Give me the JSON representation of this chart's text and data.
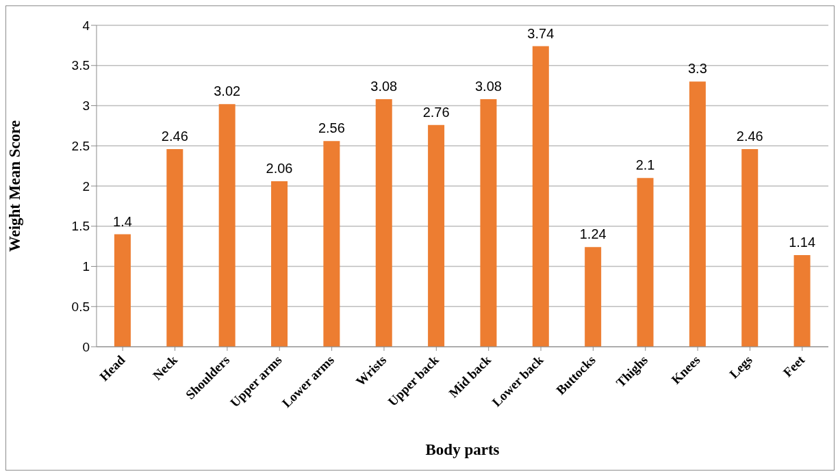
{
  "chart_data": {
    "type": "bar",
    "xlabel": "Body parts",
    "ylabel": "Weight Mean Score",
    "categories": [
      "Head",
      "Neck",
      "Shoulders",
      "Upper arms",
      "Lower arms",
      "Wrists",
      "Upper back",
      "Mid back",
      "Lower back",
      "Buttocks",
      "Thighs",
      "Knees",
      "Legs",
      "Feet"
    ],
    "values": [
      1.4,
      2.46,
      3.02,
      2.06,
      2.56,
      3.08,
      2.76,
      3.08,
      3.74,
      1.24,
      2.1,
      3.3,
      2.46,
      1.14
    ],
    "color": "#ed7d31",
    "ylim": [
      0,
      4
    ],
    "yticks": [
      0,
      0.5,
      1,
      1.5,
      2,
      2.5,
      3,
      3.5,
      4
    ],
    "grid": "y",
    "data_labels": true,
    "legend": false
  }
}
